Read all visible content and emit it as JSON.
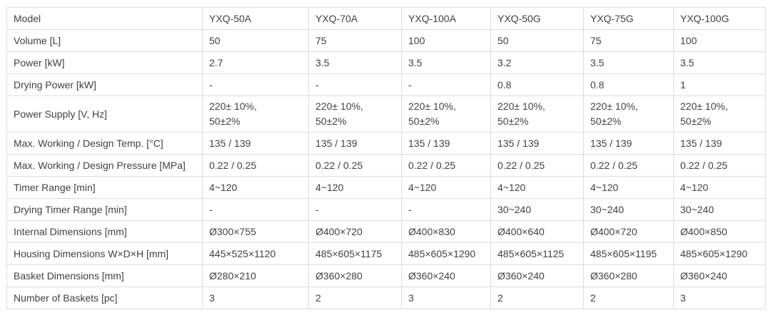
{
  "colors": {
    "background": "#ffffff",
    "text": "#414141",
    "border": "#dcdcdc"
  },
  "table": {
    "rows": [
      {
        "label": "Model",
        "values": [
          "YXQ-50A",
          "YXQ-70A",
          "YXQ-100A",
          "YXQ-50G",
          "YXQ-75G",
          "YXQ-100G"
        ]
      },
      {
        "label": "Volume [L]",
        "values": [
          "50",
          "75",
          "100",
          "50",
          "75",
          "100"
        ]
      },
      {
        "label": "Power [kW]",
        "values": [
          "2.7",
          "3.5",
          "3.5",
          "3.2",
          "3.5",
          "3.5"
        ]
      },
      {
        "label": "Drying Power [kW]",
        "values": [
          "-",
          "-",
          "-",
          "0.8",
          "0.8",
          "1"
        ]
      },
      {
        "label": "Power Supply [V, Hz]",
        "values": [
          "220± 10%,\n50±2%",
          "220± 10%,\n50±2%",
          "220± 10%,\n50±2%",
          "220± 10%,\n50±2%",
          "220± 10%,\n50±2%",
          "220± 10%,\n50±2%"
        ]
      },
      {
        "label": "Max. Working / Design Temp. [°C]",
        "values": [
          "135 / 139",
          "135 / 139",
          "135 / 139",
          "135 / 139",
          "135 / 139",
          "135 / 139"
        ]
      },
      {
        "label": "Max. Working / Design Pressure [MPa]",
        "values": [
          "0.22 / 0.25",
          "0.22 / 0.25",
          "0.22 / 0.25",
          "0.22 / 0.25",
          "0.22 / 0.25",
          "0.22 / 0.25"
        ]
      },
      {
        "label": "Timer Range [min]",
        "values": [
          "4~120",
          "4~120",
          "4~120",
          "4~120",
          "4~120",
          "4~120"
        ]
      },
      {
        "label": "Drying Timer Range [min]",
        "values": [
          "-",
          "-",
          "-",
          "30~240",
          "30~240",
          "30~240"
        ]
      },
      {
        "label": "Internal Dimensions [mm]",
        "values": [
          "Ø300×755",
          "Ø400×720",
          "Ø400×830",
          "Ø400×640",
          "Ø400×720",
          "Ø400×850"
        ]
      },
      {
        "label": "Housing Dimensions W×D×H [mm]",
        "values": [
          "445×525×1120",
          "485×605×1175",
          "485×605×1290",
          "485×605×1125",
          "485×605×1195",
          "485×605×1290"
        ]
      },
      {
        "label": "Basket Dimensions [mm]",
        "values": [
          "Ø280×210",
          "Ø360×280",
          "Ø360×240",
          "Ø360×240",
          "Ø360×280",
          "Ø360×240"
        ]
      },
      {
        "label": "Number of Baskets [pc]",
        "values": [
          "3",
          "2",
          "3",
          "2",
          "2",
          "3"
        ]
      }
    ]
  }
}
